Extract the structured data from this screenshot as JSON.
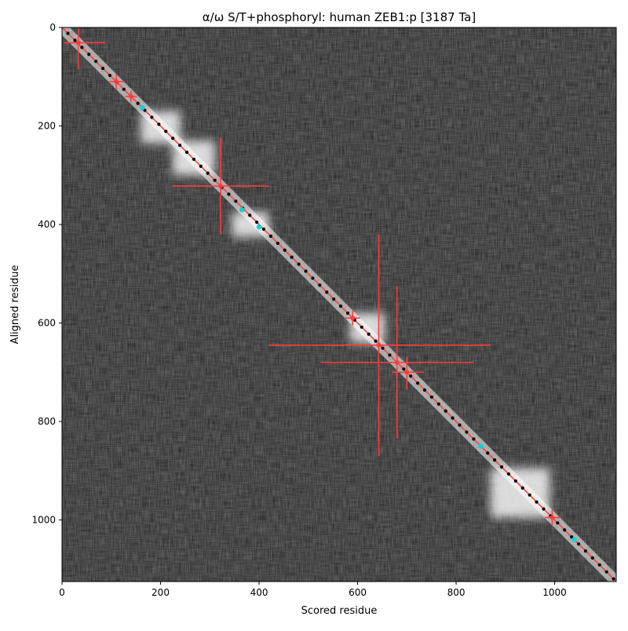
{
  "chart_data": {
    "type": "heatmap",
    "title": "α/ω S/T+phosphoryl: human ZEB1:p [3187 Ta]",
    "xlabel": "Scored residue",
    "ylabel": "Aligned residue",
    "xlim": [
      0,
      1125
    ],
    "ylim": [
      1125,
      0
    ],
    "xticks": [
      0,
      200,
      400,
      600,
      800,
      1000
    ],
    "yticks": [
      0,
      200,
      400,
      600,
      800,
      1000
    ],
    "colors": {
      "background": "#0b0b0b",
      "high": "#ffffff",
      "diagonal_line": "#ff4040",
      "cross_marker": "#ff3b3b",
      "residue_dot": "#000000",
      "highlight_dot": "#00d6d6"
    },
    "bright_blocks": [
      {
        "x": [
          160,
          240
        ],
        "y": [
          170,
          235
        ]
      },
      {
        "x": [
          225,
          310
        ],
        "y": [
          230,
          300
        ]
      },
      {
        "x": [
          345,
          420
        ],
        "y": [
          375,
          425
        ]
      },
      {
        "x": [
          585,
          655
        ],
        "y": [
          580,
          640
        ]
      },
      {
        "x": [
          870,
          990
        ],
        "y": [
          895,
          995
        ]
      }
    ],
    "crosses": [
      {
        "x": 33,
        "y": 31,
        "h": [
          3,
          88
        ],
        "v": [
          3,
          85
        ]
      },
      {
        "x": 110,
        "y": 110,
        "h": [
          95,
          127
        ],
        "v": [
          95,
          127
        ]
      },
      {
        "x": 140,
        "y": 140,
        "h": [
          128,
          152
        ],
        "v": [
          128,
          152
        ]
      },
      {
        "x": 322,
        "y": 322,
        "h": [
          224,
          420
        ],
        "v": [
          224,
          420
        ]
      },
      {
        "x": 590,
        "y": 590,
        "h": [
          575,
          605
        ],
        "v": [
          575,
          605
        ]
      },
      {
        "x": 643,
        "y": 645,
        "h": [
          420,
          870
        ],
        "v": [
          420,
          870
        ]
      },
      {
        "x": 680,
        "y": 680,
        "h": [
          525,
          835
        ],
        "v": [
          525,
          835
        ]
      },
      {
        "x": 700,
        "y": 700,
        "h": [
          670,
          735
        ],
        "v": [
          670,
          735
        ]
      },
      {
        "x": 995,
        "y": 995,
        "h": [
          980,
          1012
        ],
        "v": [
          980,
          1012
        ]
      }
    ],
    "highlight_points": [
      {
        "x": 163,
        "y": 163
      },
      {
        "x": 365,
        "y": 370
      },
      {
        "x": 400,
        "y": 405
      },
      {
        "x": 850,
        "y": 850
      },
      {
        "x": 1040,
        "y": 1040
      }
    ]
  }
}
